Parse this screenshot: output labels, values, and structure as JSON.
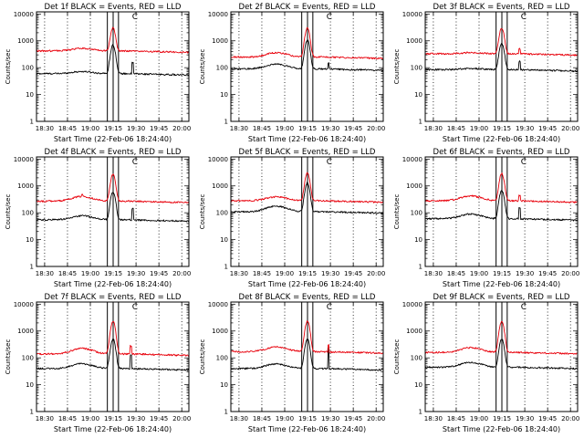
{
  "figure": {
    "xlabel": "Start Time (22-Feb-06 18:24:40)",
    "ylabel": "Counts/sec",
    "x_ticks": [
      "18:30",
      "18:45",
      "19:00",
      "19:15",
      "19:30",
      "19:45",
      "20:00"
    ],
    "y_ticks": [
      "1",
      "10",
      "100",
      "1000",
      "10000"
    ],
    "marker_label": "C"
  },
  "colors": {
    "events": "#000000",
    "lld": "#e8000b",
    "grid": "#000000",
    "frame": "#000000"
  },
  "chart_data": [
    {
      "type": "line",
      "title": "Det 1f BLACK = Events, RED = LLD",
      "x_unit": "minutes since 18:24:40",
      "xlim": [
        0,
        100
      ],
      "ylim": [
        1,
        12000
      ],
      "yscale": "log",
      "grid": "vertical dotted",
      "vertical_markers": [
        46.5,
        50.3,
        53.8
      ],
      "series": [
        {
          "name": "Events",
          "color": "black",
          "baseline": 60,
          "hump": 1.2,
          "peak": 700,
          "spikes": [
            {
              "x": 63,
              "v": 150
            }
          ]
        },
        {
          "name": "LLD",
          "color": "red",
          "baseline": 420,
          "hump": 1.25,
          "peak": 3000,
          "spikes": []
        }
      ]
    },
    {
      "type": "line",
      "title": "Det 2f BLACK = Events, RED = LLD",
      "x_unit": "minutes since 18:24:40",
      "xlim": [
        0,
        100
      ],
      "ylim": [
        1,
        12000
      ],
      "yscale": "log",
      "grid": "vertical dotted",
      "vertical_markers": [
        46.5,
        50.3,
        53.8
      ],
      "series": [
        {
          "name": "Events",
          "color": "black",
          "baseline": 90,
          "hump": 1.5,
          "peak": 1100,
          "spikes": [
            {
              "x": 64,
              "v": 150
            }
          ]
        },
        {
          "name": "LLD",
          "color": "red",
          "baseline": 250,
          "hump": 1.45,
          "peak": 3000,
          "spikes": []
        }
      ]
    },
    {
      "type": "line",
      "title": "Det 3f BLACK = Events, RED = LLD",
      "x_unit": "minutes since 18:24:40",
      "xlim": [
        0,
        100
      ],
      "ylim": [
        1,
        12000
      ],
      "yscale": "log",
      "grid": "vertical dotted",
      "vertical_markers": [
        46.5,
        50.3,
        53.8
      ],
      "series": [
        {
          "name": "Events",
          "color": "black",
          "baseline": 85,
          "hump": 1.1,
          "peak": 800,
          "spikes": [
            {
              "x": 62,
              "v": 170
            }
          ]
        },
        {
          "name": "LLD",
          "color": "red",
          "baseline": 330,
          "hump": 1.1,
          "peak": 3000,
          "spikes": [
            {
              "x": 62,
              "v": 500
            }
          ]
        }
      ]
    },
    {
      "type": "line",
      "title": "Det 4f BLACK = Events, RED = LLD",
      "x_unit": "minutes since 18:24:40",
      "xlim": [
        0,
        100
      ],
      "ylim": [
        1,
        12000
      ],
      "yscale": "log",
      "grid": "vertical dotted",
      "vertical_markers": [
        46.5,
        50.3,
        53.8
      ],
      "series": [
        {
          "name": "Events",
          "color": "black",
          "baseline": 55,
          "hump": 1.4,
          "peak": 600,
          "spikes": [
            {
              "x": 63,
              "v": 140
            }
          ]
        },
        {
          "name": "LLD",
          "color": "red",
          "baseline": 270,
          "hump": 1.5,
          "peak": 2700,
          "spikes": [
            {
              "x": 30,
              "v": 470
            }
          ]
        }
      ]
    },
    {
      "type": "line",
      "title": "Det 5f BLACK = Events, RED = LLD",
      "x_unit": "minutes since 18:24:40",
      "xlim": [
        0,
        100
      ],
      "ylim": [
        1,
        12000
      ],
      "yscale": "log",
      "grid": "vertical dotted",
      "vertical_markers": [
        46.5,
        50.3,
        53.8
      ],
      "series": [
        {
          "name": "Events",
          "color": "black",
          "baseline": 110,
          "hump": 1.6,
          "peak": 1300,
          "spikes": []
        },
        {
          "name": "LLD",
          "color": "red",
          "baseline": 280,
          "hump": 1.4,
          "peak": 3000,
          "spikes": []
        }
      ]
    },
    {
      "type": "line",
      "title": "Det 6f BLACK = Events, RED = LLD",
      "x_unit": "minutes since 18:24:40",
      "xlim": [
        0,
        100
      ],
      "ylim": [
        1,
        12000
      ],
      "yscale": "log",
      "grid": "vertical dotted",
      "vertical_markers": [
        46.5,
        50.3,
        53.8
      ],
      "series": [
        {
          "name": "Events",
          "color": "black",
          "baseline": 60,
          "hump": 1.5,
          "peak": 700,
          "spikes": [
            {
              "x": 62,
              "v": 160
            }
          ]
        },
        {
          "name": "LLD",
          "color": "red",
          "baseline": 280,
          "hump": 1.5,
          "peak": 2900,
          "spikes": [
            {
              "x": 62,
              "v": 440
            }
          ]
        }
      ]
    },
    {
      "type": "line",
      "title": "Det 7f BLACK = Events, RED = LLD",
      "x_unit": "minutes since 18:24:40",
      "xlim": [
        0,
        100
      ],
      "ylim": [
        1,
        12000
      ],
      "yscale": "log",
      "grid": "vertical dotted",
      "vertical_markers": [
        46.5,
        50.3,
        53.8
      ],
      "series": [
        {
          "name": "Events",
          "color": "black",
          "baseline": 40,
          "hump": 1.5,
          "peak": 500,
          "spikes": [
            {
              "x": 62,
              "v": 130
            }
          ]
        },
        {
          "name": "LLD",
          "color": "red",
          "baseline": 140,
          "hump": 1.6,
          "peak": 2300,
          "spikes": [
            {
              "x": 62,
              "v": 280
            }
          ]
        }
      ]
    },
    {
      "type": "line",
      "title": "Det 8f BLACK = Events, RED = LLD",
      "x_unit": "minutes since 18:24:40",
      "xlim": [
        0,
        100
      ],
      "ylim": [
        1,
        12000
      ],
      "yscale": "log",
      "grid": "vertical dotted",
      "vertical_markers": [
        46.5,
        50.3,
        53.8
      ],
      "series": [
        {
          "name": "Events",
          "color": "black",
          "baseline": 40,
          "hump": 1.5,
          "peak": 500,
          "spikes": [
            {
              "x": 64,
              "v": 230
            }
          ]
        },
        {
          "name": "LLD",
          "color": "red",
          "baseline": 170,
          "hump": 1.5,
          "peak": 2300,
          "spikes": [
            {
              "x": 64,
              "v": 300
            }
          ]
        }
      ]
    },
    {
      "type": "line",
      "title": "Det 9f BLACK = Events, RED = LLD",
      "x_unit": "minutes since 18:24:40",
      "xlim": [
        0,
        100
      ],
      "ylim": [
        1,
        12000
      ],
      "yscale": "log",
      "grid": "vertical dotted",
      "vertical_markers": [
        46.5,
        50.3,
        53.8
      ],
      "series": [
        {
          "name": "Events",
          "color": "black",
          "baseline": 45,
          "hump": 1.5,
          "peak": 500,
          "spikes": []
        },
        {
          "name": "LLD",
          "color": "red",
          "baseline": 160,
          "hump": 1.5,
          "peak": 2300,
          "spikes": []
        }
      ]
    }
  ]
}
